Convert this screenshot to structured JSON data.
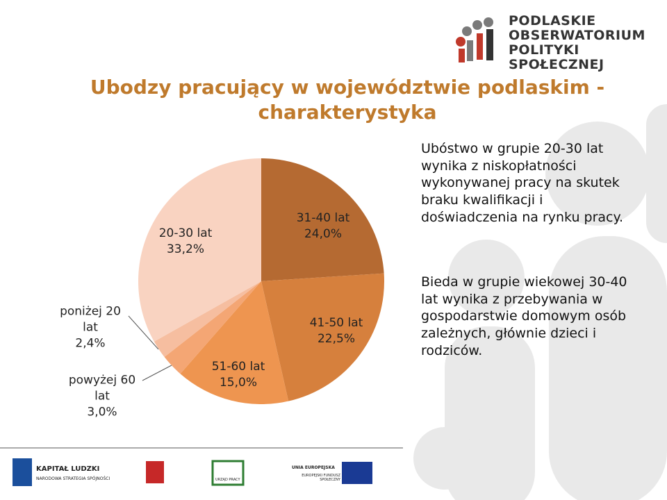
{
  "logo": [
    "PODLASKIE",
    "OBSERWATORIUM",
    "POLITYKI",
    "SPOŁECZNEJ"
  ],
  "chart_data": {
    "type": "pie",
    "title": "Ubodzy pracujący w województwie podlaskim - charakterystyka",
    "categories": [
      "31-40 lat",
      "41-50 lat",
      "51-60 lat",
      "powyżej 60 lat",
      "poniżej 20 lat",
      "20-30 lat"
    ],
    "values": [
      24.0,
      22.5,
      15.0,
      3.0,
      2.4,
      33.2
    ],
    "value_labels": [
      "24,0%",
      "22,5%",
      "15,0%",
      "3,0%",
      "2,4%",
      "33,2%"
    ],
    "colors": [
      "#b56a32",
      "#d6803d",
      "#ee9550",
      "#f4a674",
      "#f6bea0",
      "#f9d3c1"
    ]
  },
  "paragraphs": [
    "Ubóstwo w grupie 20-30 lat wynika z niskopłatności wykonywanej pracy na skutek braku kwalifikacji i doświadczenia na rynku pracy.",
    "Bieda w grupie wiekowej 30-40 lat wynika z przebywania w gospodarstwie domowym osób zależnych, głównie dzieci i rodziców."
  ],
  "footer": {
    "kl_title": "KAPITAŁ LUDZKI",
    "kl_sub": "NARODOWA STRATEGIA SPÓJNOŚCI",
    "up": "URZĄD PRACY",
    "eu_title": "UNIA EUROPEJSKA",
    "eu_sub": "EUROPEJSKI FUNDUSZ SPOŁECZNY"
  }
}
